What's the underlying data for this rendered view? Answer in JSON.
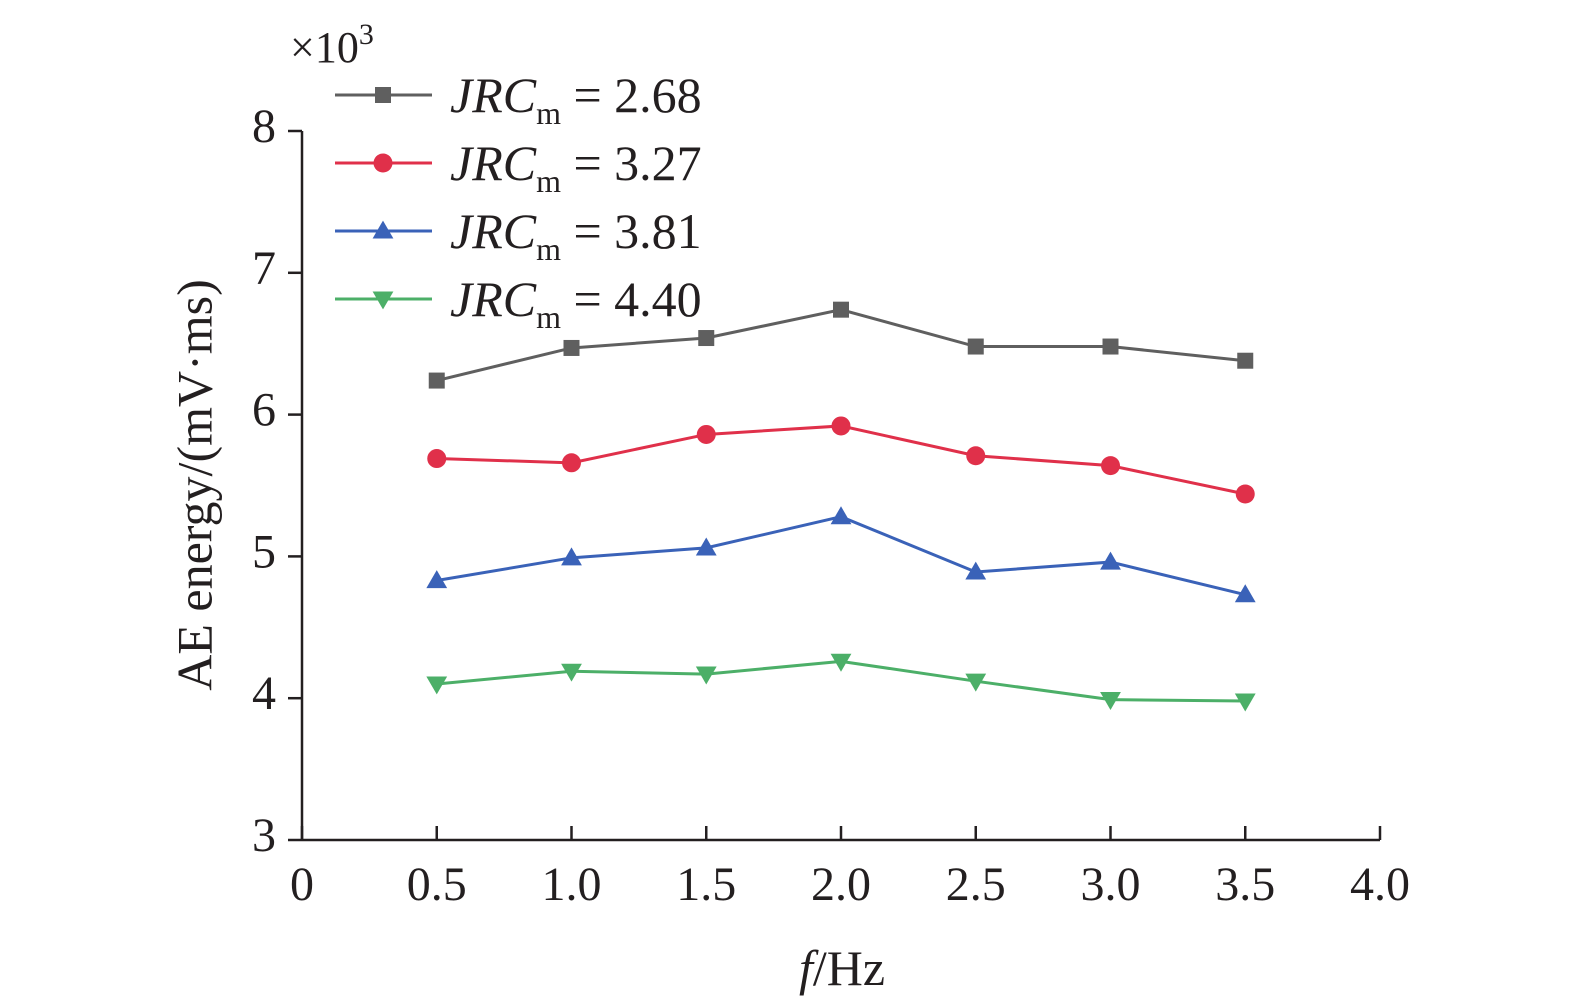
{
  "chart_data": {
    "type": "line",
    "title": "",
    "xlabel_italic": "f",
    "xlabel_unit": "/Hz",
    "ylabel": "AE energy/(mV·ms)",
    "y_multiplier_base": "×10",
    "y_multiplier_exp": "3",
    "xlim": [
      0,
      4.0
    ],
    "ylim": [
      3,
      8
    ],
    "xticks": [
      0,
      0.5,
      1.0,
      1.5,
      2.0,
      2.5,
      3.0,
      3.5,
      4.0
    ],
    "xtick_labels": [
      "0",
      "0.5",
      "1.0",
      "1.5",
      "2.0",
      "2.5",
      "3.0",
      "3.5",
      "4.0"
    ],
    "yticks": [
      3,
      4,
      5,
      6,
      7,
      8
    ],
    "ytick_labels": [
      "3",
      "4",
      "5",
      "6",
      "7",
      "8"
    ],
    "grid": false,
    "legend_position": "top-left",
    "x": [
      0.5,
      1.0,
      1.5,
      2.0,
      2.5,
      3.0,
      3.5
    ],
    "series": [
      {
        "name_main": "JRC",
        "name_sub": "m",
        "name_value": " = 2.68",
        "color": "#5f5f5f",
        "marker": "square",
        "values": [
          6.24,
          6.47,
          6.54,
          6.74,
          6.48,
          6.48,
          6.38
        ]
      },
      {
        "name_main": "JRC",
        "name_sub": "m",
        "name_value": " = 3.27",
        "color": "#e0304a",
        "marker": "circle",
        "values": [
          5.69,
          5.66,
          5.86,
          5.92,
          5.71,
          5.64,
          5.44
        ]
      },
      {
        "name_main": "JRC",
        "name_sub": "m",
        "name_value": " = 3.81",
        "color": "#3a62b8",
        "marker": "triangle-up",
        "values": [
          4.83,
          4.99,
          5.06,
          5.28,
          4.89,
          4.96,
          4.73
        ]
      },
      {
        "name_main": "JRC",
        "name_sub": "m",
        "name_value": " = 4.40",
        "color": "#4caf68",
        "marker": "triangle-down",
        "values": [
          4.1,
          4.19,
          4.17,
          4.26,
          4.12,
          3.99,
          3.98
        ]
      }
    ]
  }
}
